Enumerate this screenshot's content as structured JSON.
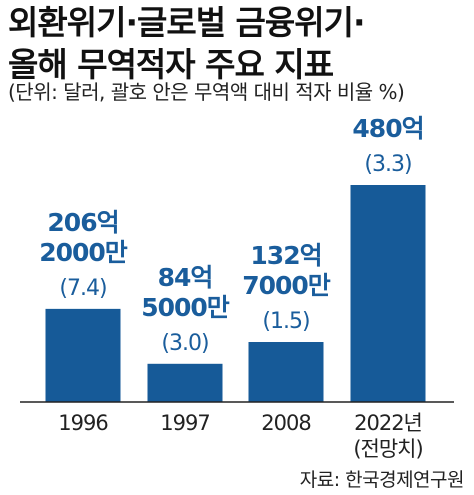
{
  "header": {
    "title_line1": "외환위기·글로벌 금융위기·",
    "title_line2": "올해 무역적자 주요 지표",
    "unit_note": "(단위: 달러, 괄호 안은 무역액 대비 적자 비율 %)"
  },
  "footer": {
    "source": "자료: 한국경제연구원"
  },
  "colors": {
    "bar": "#165a98",
    "value_text": "#1a5d9c",
    "axis": "#222222"
  },
  "chart_data": {
    "type": "bar",
    "categories": [
      "1996",
      "1997",
      "2008",
      "2022년"
    ],
    "category_sublabels": [
      "",
      "",
      "",
      "(전망치)"
    ],
    "values": [
      206.0,
      84.5,
      132.7,
      480
    ],
    "value_labels": [
      [
        "206억",
        "2000만"
      ],
      [
        "84억",
        "5000만"
      ],
      [
        "132억",
        "7000만"
      ],
      [
        "480억"
      ]
    ],
    "ratio_values": [
      7.4,
      3.0,
      1.5,
      3.3
    ],
    "ratio_labels": [
      "(7.4)",
      "(3.0)",
      "(1.5)",
      "(3.3)"
    ],
    "ylim": [
      0,
      500
    ]
  }
}
